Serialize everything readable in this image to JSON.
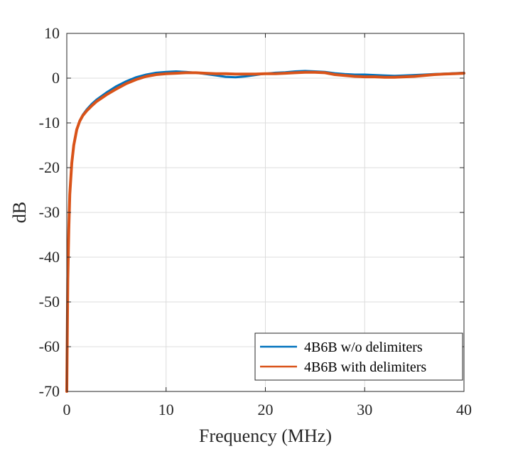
{
  "chart_data": {
    "type": "line",
    "xlabel": "Frequency (MHz)",
    "ylabel": "dB",
    "xlim": [
      0,
      40
    ],
    "ylim": [
      -70,
      10
    ],
    "xticks": [
      0,
      10,
      20,
      30,
      40
    ],
    "yticks": [
      10,
      0,
      -10,
      -20,
      -30,
      -40,
      -50,
      -60,
      -70
    ],
    "xtick_labels": [
      "0",
      "10",
      "20",
      "30",
      "40"
    ],
    "ytick_labels": [
      "10",
      "0",
      "-10",
      "-20",
      "-30",
      "-40",
      "-50",
      "-60",
      "-70"
    ],
    "grid": true,
    "legend_position": "bottom-right",
    "series": [
      {
        "name": "4B6B w/o delimiters",
        "color": "#0072BD",
        "x": [
          0,
          0.1,
          0.2,
          0.3,
          0.5,
          0.7,
          1.0,
          1.3,
          1.6,
          2.0,
          2.5,
          3,
          4,
          5,
          6,
          7,
          8,
          9,
          10,
          11,
          12,
          13,
          14,
          15,
          16,
          17,
          18,
          19,
          20,
          21,
          22,
          23,
          24,
          25,
          26,
          27,
          28,
          29,
          30,
          31,
          32,
          33,
          34,
          35,
          36,
          37,
          38,
          39,
          40
        ],
        "y": [
          -70,
          -45,
          -34,
          -26,
          -19,
          -15,
          -11.5,
          -9.5,
          -8.2,
          -7,
          -5.8,
          -4.8,
          -3.2,
          -1.8,
          -0.7,
          0.2,
          0.8,
          1.2,
          1.4,
          1.5,
          1.4,
          1.2,
          0.9,
          0.6,
          0.3,
          0.2,
          0.4,
          0.7,
          1.0,
          1.2,
          1.3,
          1.5,
          1.6,
          1.5,
          1.4,
          1.1,
          0.9,
          0.8,
          0.8,
          0.7,
          0.6,
          0.5,
          0.6,
          0.7,
          0.8,
          0.9,
          1.0,
          1.1,
          1.2
        ]
      },
      {
        "name": "4B6B with delimiters",
        "color": "#D95319",
        "x": [
          0,
          0.1,
          0.2,
          0.3,
          0.5,
          0.7,
          1.0,
          1.3,
          1.6,
          2.0,
          2.5,
          3,
          4,
          5,
          6,
          7,
          8,
          9,
          10,
          11,
          12,
          13,
          14,
          15,
          16,
          17,
          18,
          19,
          20,
          21,
          22,
          23,
          24,
          25,
          26,
          27,
          28,
          29,
          30,
          31,
          32,
          33,
          34,
          35,
          36,
          37,
          38,
          39,
          40
        ],
        "y": [
          -70,
          -45,
          -34,
          -26,
          -19,
          -15,
          -11.5,
          -9.6,
          -8.4,
          -7.3,
          -6.2,
          -5.2,
          -3.7,
          -2.4,
          -1.2,
          -0.3,
          0.4,
          0.8,
          1.0,
          1.1,
          1.2,
          1.2,
          1.1,
          1.0,
          1.0,
          0.9,
          0.9,
          0.9,
          1.0,
          1.0,
          1.1,
          1.2,
          1.3,
          1.3,
          1.2,
          0.8,
          0.6,
          0.4,
          0.3,
          0.3,
          0.2,
          0.2,
          0.3,
          0.4,
          0.6,
          0.8,
          0.9,
          1.0,
          1.1
        ]
      }
    ]
  }
}
